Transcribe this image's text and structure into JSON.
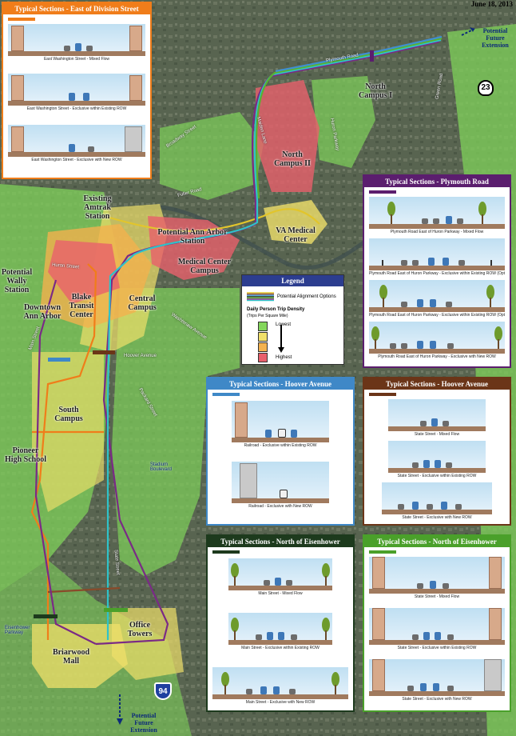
{
  "date": "June 18, 2013",
  "extensions": {
    "north": "Potential\nFuture\nExtension",
    "south": "Potential\nFuture\nExtension"
  },
  "highways": {
    "us23": "23",
    "i94": "94"
  },
  "places": [
    {
      "id": "north-campus-i",
      "text": "North\nCampus I"
    },
    {
      "id": "north-campus-ii",
      "text": "North\nCampus II"
    },
    {
      "id": "amtrak",
      "text": "Existing\nAmtrak\nStation"
    },
    {
      "id": "aa-station",
      "text": "Potential Ann Arbor\nStation"
    },
    {
      "id": "va",
      "text": "VA Medical\nCenter"
    },
    {
      "id": "wally",
      "text": "Potential\nWally\nStation"
    },
    {
      "id": "medical",
      "text": "Medical Center\nCampus"
    },
    {
      "id": "downtown",
      "text": "Downtown\nAnn Arbor"
    },
    {
      "id": "blake",
      "text": "Blake\nTransit\nCenter"
    },
    {
      "id": "central",
      "text": "Central\nCampus"
    },
    {
      "id": "south-campus",
      "text": "South\nCampus"
    },
    {
      "id": "pioneer",
      "text": "Pioneer\nHigh School"
    },
    {
      "id": "office",
      "text": "Office\nTowers"
    },
    {
      "id": "briarwood",
      "text": "Briarwood\nMall"
    }
  ],
  "streets": [
    {
      "id": "plymouth-road",
      "text": "Plymouth Road"
    },
    {
      "id": "green-road",
      "text": "Green Road"
    },
    {
      "id": "huron-parkway",
      "text": "Huron Parkway"
    },
    {
      "id": "broadway",
      "text": "Broadway Street"
    },
    {
      "id": "fuller",
      "text": "Fuller Road"
    },
    {
      "id": "huron-street",
      "text": "Huron Street"
    },
    {
      "id": "hoover",
      "text": "Hoover Avenue"
    },
    {
      "id": "washtenaw",
      "text": "Washtenaw Avenue"
    },
    {
      "id": "stadium",
      "text": "Stadium\nBoulevard"
    },
    {
      "id": "packard",
      "text": "Packard Street"
    },
    {
      "id": "main-street",
      "text": "Main Street"
    },
    {
      "id": "state-street",
      "text": "State Street"
    },
    {
      "id": "eisenhower",
      "text": "Eisenhower\nParkway"
    },
    {
      "id": "maiden-lane",
      "text": "Maiden Lane"
    }
  ],
  "legend": {
    "title": "Legend",
    "alignment_label": "Potential Alignment Options",
    "density_title": "Daily Person Trip Density",
    "density_sub": "(Trips Per Square Mile)",
    "lowest": "Lowest",
    "highest": "Highest",
    "density_colors": [
      "#84d65c",
      "#f0e06a",
      "#f3b24e",
      "#e8606c"
    ],
    "alignment_colors": [
      "#e2c52b",
      "#8a4a2a",
      "#3f8fd0",
      "#1e3a1e",
      "#5ab032",
      "#7a2a86",
      "#2ec3c9"
    ]
  },
  "panels": {
    "division": {
      "title": "Typical Sections - East of Division Street",
      "color": "#f07d1a",
      "captions": [
        "East Washington Street - Mixed Flow",
        "East Washington Street - Exclusive within Existing ROW",
        "East Washington Street - Exclusive with New ROW"
      ]
    },
    "plymouth": {
      "title": "Typical Sections - Plymouth Road",
      "color": "#5b1e6e",
      "captions": [
        "Plymouth Road East of Huron Parkway - Mixed Flow",
        "Plymouth Road East of Huron Parkway - Exclusive within Existing ROW (Option 1)",
        "Plymouth Road East of Huron Parkway - Exclusive within Existing ROW (Option 2)",
        "Plymouth Road East of Huron Parkway - Exclusive with New ROW"
      ]
    },
    "hoover_rail": {
      "title": "Typical Sections - Hoover Avenue",
      "color": "#3f88c7",
      "captions": [
        "Railroad - Exclusive within Existing ROW",
        "Railroad - Exclusive with New ROW"
      ]
    },
    "hoover_state": {
      "title": "Typical Sections - Hoover Avenue",
      "color": "#6b3518",
      "captions": [
        "State Street - Mixed Flow",
        "State Street - Exclusive within Existing ROW",
        "State Street - Exclusive with New ROW"
      ]
    },
    "eisen_main": {
      "title": "Typical Sections - North of Eisenhower",
      "color": "#1d3a1d",
      "captions": [
        "Main Street - Mixed Flow",
        "Main Street - Exclusive within Existing ROW",
        "Main Street - Exclusive with New ROW"
      ]
    },
    "eisen_state": {
      "title": "Typical Sections - North of Eisenhower",
      "color": "#4aa02a",
      "captions": [
        "State Street - Mixed Flow",
        "State Street - Exclusive within Existing ROW",
        "State Street - Exclusive with New ROW"
      ]
    }
  }
}
